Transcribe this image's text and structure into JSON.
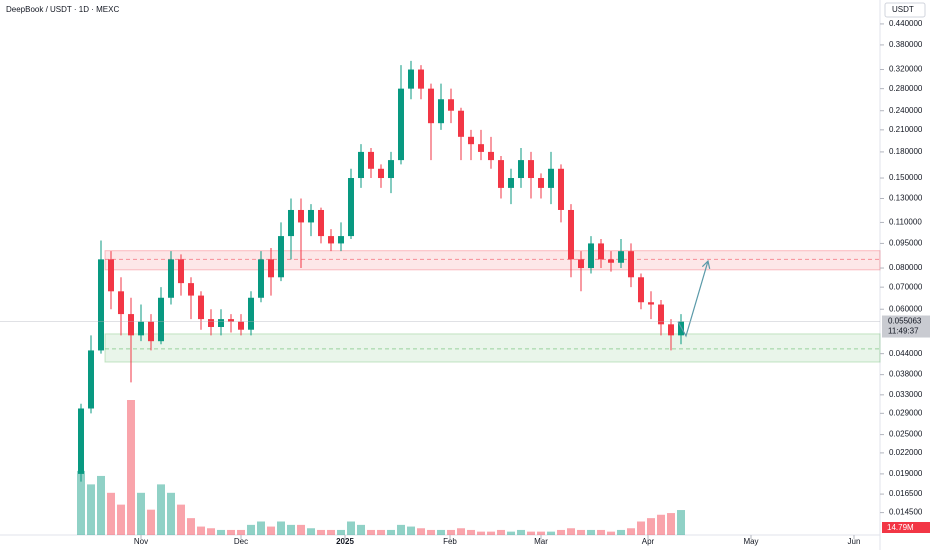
{
  "chart_data": {
    "type": "candlestick",
    "title": "DeepBook / USDT · 1D · MEXC",
    "currency": "USDT",
    "log_scale": true,
    "up_color": "#089981",
    "down_color": "#f23645",
    "ylim": [
      0.0124,
      0.52
    ],
    "yticks": [
      {
        "value": 0.44,
        "label": "0.440000"
      },
      {
        "value": 0.38,
        "label": "0.380000"
      },
      {
        "value": 0.32,
        "label": "0.320000"
      },
      {
        "value": 0.28,
        "label": "0.280000"
      },
      {
        "value": 0.24,
        "label": "0.240000"
      },
      {
        "value": 0.21,
        "label": "0.210000"
      },
      {
        "value": 0.18,
        "label": "0.180000"
      },
      {
        "value": 0.15,
        "label": "0.150000"
      },
      {
        "value": 0.13,
        "label": "0.130000"
      },
      {
        "value": 0.11,
        "label": "0.110000"
      },
      {
        "value": 0.095,
        "label": "0.095000"
      },
      {
        "value": 0.08,
        "label": "0.080000"
      },
      {
        "value": 0.07,
        "label": "0.070000"
      },
      {
        "value": 0.06,
        "label": "0.060000"
      },
      {
        "value": 0.044,
        "label": "0.044000"
      },
      {
        "value": 0.038,
        "label": "0.038000"
      },
      {
        "value": 0.033,
        "label": "0.033000"
      },
      {
        "value": 0.029,
        "label": "0.029000"
      },
      {
        "value": 0.025,
        "label": "0.025000"
      },
      {
        "value": 0.022,
        "label": "0.022000"
      },
      {
        "value": 0.019,
        "label": "0.019000"
      },
      {
        "value": 0.0165,
        "label": "0.016500"
      },
      {
        "value": 0.0145,
        "label": "0.014500"
      }
    ],
    "xlim": [
      -8.1,
      79.9
    ],
    "xticks": [
      {
        "value": 6,
        "label": "Nov"
      },
      {
        "value": 16,
        "label": "Dec"
      },
      {
        "value": 26.4,
        "label": "2025"
      },
      {
        "value": 36.9,
        "label": "Feb"
      },
      {
        "value": 46,
        "label": "Mar"
      },
      {
        "value": 56.7,
        "label": "Apr"
      },
      {
        "value": 67,
        "label": "May"
      },
      {
        "value": 77.3,
        "label": "Jun"
      }
    ],
    "open": [
      0.019,
      0.03,
      0.045,
      0.085,
      0.068,
      0.058,
      0.05,
      0.055,
      0.048,
      0.065,
      0.085,
      0.072,
      0.066,
      0.056,
      0.053,
      0.056,
      0.055,
      0.052,
      0.065,
      0.085,
      0.075,
      0.1,
      0.12,
      0.11,
      0.12,
      0.1,
      0.095,
      0.1,
      0.15,
      0.18,
      0.16,
      0.15,
      0.17,
      0.28,
      0.32,
      0.28,
      0.22,
      0.26,
      0.24,
      0.2,
      0.19,
      0.18,
      0.17,
      0.14,
      0.15,
      0.17,
      0.15,
      0.14,
      0.16,
      0.12,
      0.085,
      0.08,
      0.095,
      0.085,
      0.083,
      0.09,
      0.075,
      0.063,
      0.062,
      0.054,
      0.05
    ],
    "high": [
      0.031,
      0.05,
      0.097,
      0.09,
      0.075,
      0.065,
      0.062,
      0.058,
      0.07,
      0.09,
      0.088,
      0.075,
      0.068,
      0.06,
      0.06,
      0.058,
      0.058,
      0.068,
      0.09,
      0.092,
      0.11,
      0.13,
      0.13,
      0.125,
      0.122,
      0.105,
      0.11,
      0.16,
      0.19,
      0.185,
      0.165,
      0.18,
      0.33,
      0.34,
      0.33,
      0.29,
      0.29,
      0.28,
      0.245,
      0.21,
      0.21,
      0.2,
      0.175,
      0.16,
      0.185,
      0.18,
      0.155,
      0.18,
      0.165,
      0.125,
      0.09,
      0.1,
      0.098,
      0.09,
      0.098,
      0.095,
      0.077,
      0.068,
      0.064,
      0.056,
      0.058
    ],
    "low": [
      0.018,
      0.029,
      0.044,
      0.06,
      0.05,
      0.036,
      0.048,
      0.045,
      0.047,
      0.062,
      0.066,
      0.056,
      0.052,
      0.05,
      0.05,
      0.051,
      0.05,
      0.05,
      0.063,
      0.066,
      0.073,
      0.085,
      0.08,
      0.1,
      0.095,
      0.09,
      0.09,
      0.098,
      0.14,
      0.15,
      0.14,
      0.135,
      0.165,
      0.26,
      0.26,
      0.17,
      0.21,
      0.22,
      0.17,
      0.17,
      0.17,
      0.16,
      0.13,
      0.125,
      0.14,
      0.13,
      0.13,
      0.125,
      0.11,
      0.075,
      0.068,
      0.077,
      0.08,
      0.078,
      0.08,
      0.07,
      0.06,
      0.056,
      0.05,
      0.045,
      0.047
    ],
    "close": [
      0.03,
      0.045,
      0.085,
      0.068,
      0.058,
      0.05,
      0.055,
      0.048,
      0.065,
      0.085,
      0.072,
      0.066,
      0.056,
      0.053,
      0.056,
      0.055,
      0.052,
      0.065,
      0.085,
      0.075,
      0.1,
      0.12,
      0.11,
      0.12,
      0.1,
      0.095,
      0.1,
      0.15,
      0.18,
      0.16,
      0.15,
      0.17,
      0.28,
      0.32,
      0.28,
      0.22,
      0.26,
      0.24,
      0.2,
      0.19,
      0.18,
      0.17,
      0.14,
      0.15,
      0.17,
      0.15,
      0.14,
      0.16,
      0.12,
      0.085,
      0.08,
      0.095,
      0.085,
      0.083,
      0.09,
      0.075,
      0.063,
      0.062,
      0.054,
      0.05,
      0.055063
    ],
    "volume": [
      38,
      30,
      35,
      25,
      18,
      80,
      25,
      15,
      30,
      25,
      18,
      10,
      5,
      4,
      3,
      3,
      3,
      6,
      8,
      5,
      8,
      6,
      6,
      4,
      3,
      3,
      3,
      8,
      6,
      3,
      3,
      3,
      6,
      5,
      4,
      3,
      3,
      3,
      4,
      3,
      2,
      2,
      3,
      2,
      3,
      2,
      2,
      2,
      3,
      4,
      3,
      3,
      3,
      2,
      3,
      4,
      8,
      10,
      12,
      13,
      14.79
    ],
    "last_price_label": "0.055063",
    "countdown": "11:49:37",
    "volume_label": "14.79M",
    "zones": [
      {
        "low": 0.079,
        "high": 0.0903,
        "mid": 0.085,
        "color": "#f23645"
      },
      {
        "low": 0.0415,
        "high": 0.0505,
        "mid": 0.0455,
        "color": "#4caf50"
      }
    ],
    "projection": {
      "x": [
        59.7,
        60.5,
        62.7
      ],
      "y": [
        0.055,
        0.0498,
        0.084
      ],
      "color": "#5b9aa9"
    }
  }
}
